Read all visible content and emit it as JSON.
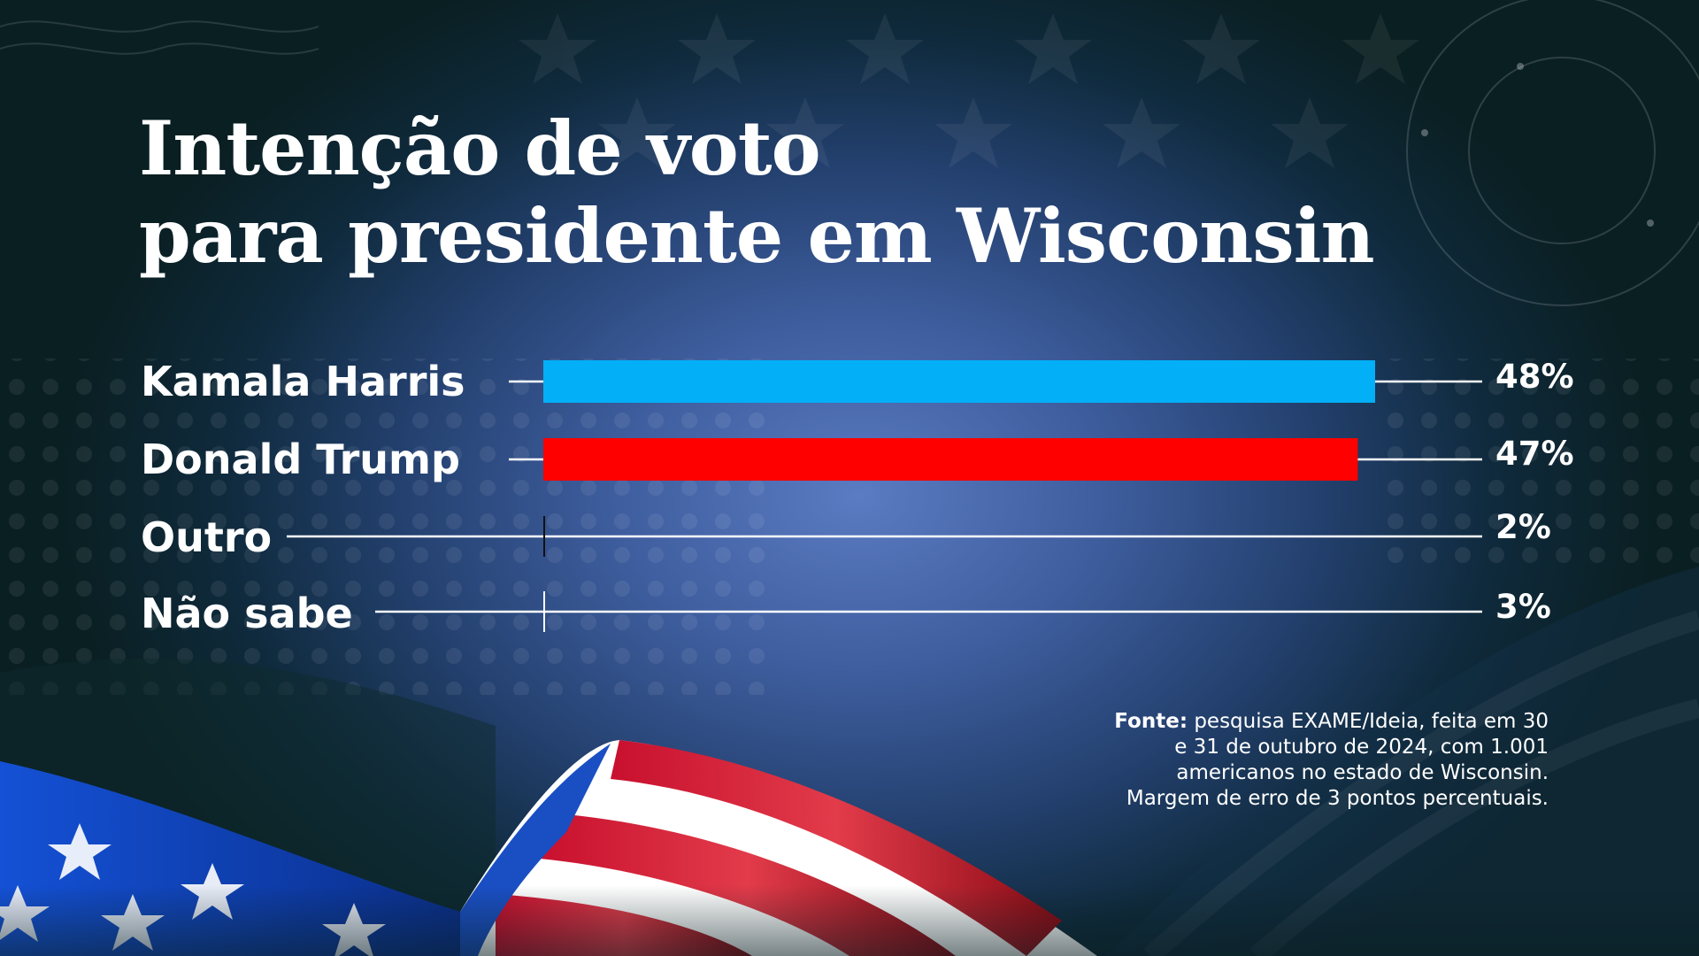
{
  "title": {
    "line1": "Intenção de voto",
    "line2": "para presidente em Wisconsin"
  },
  "chart_data": {
    "type": "bar",
    "orientation": "horizontal",
    "categories": [
      "Kamala Harris",
      "Donald Trump",
      "Outro",
      "Não sabe"
    ],
    "values": [
      48,
      47,
      2,
      3
    ],
    "value_labels": [
      "48%",
      "47%",
      "2%",
      "3%"
    ],
    "colors": [
      "#03aff7",
      "#fe0000",
      "#ffffff",
      "#ffffff"
    ],
    "xlim": [
      0,
      48
    ],
    "grid": false,
    "legend": "none"
  },
  "source": {
    "label": "Fonte:",
    "text": "pesquisa EXAME/Ideia, feita em 30 e 31 de outubro de 2024, com 1.001 americanos no estado de Wisconsin. Margem de erro de 3 pontos percentuais."
  },
  "colors": {
    "harris": "#03aff7",
    "trump": "#fe0000",
    "text": "#ffffff"
  }
}
